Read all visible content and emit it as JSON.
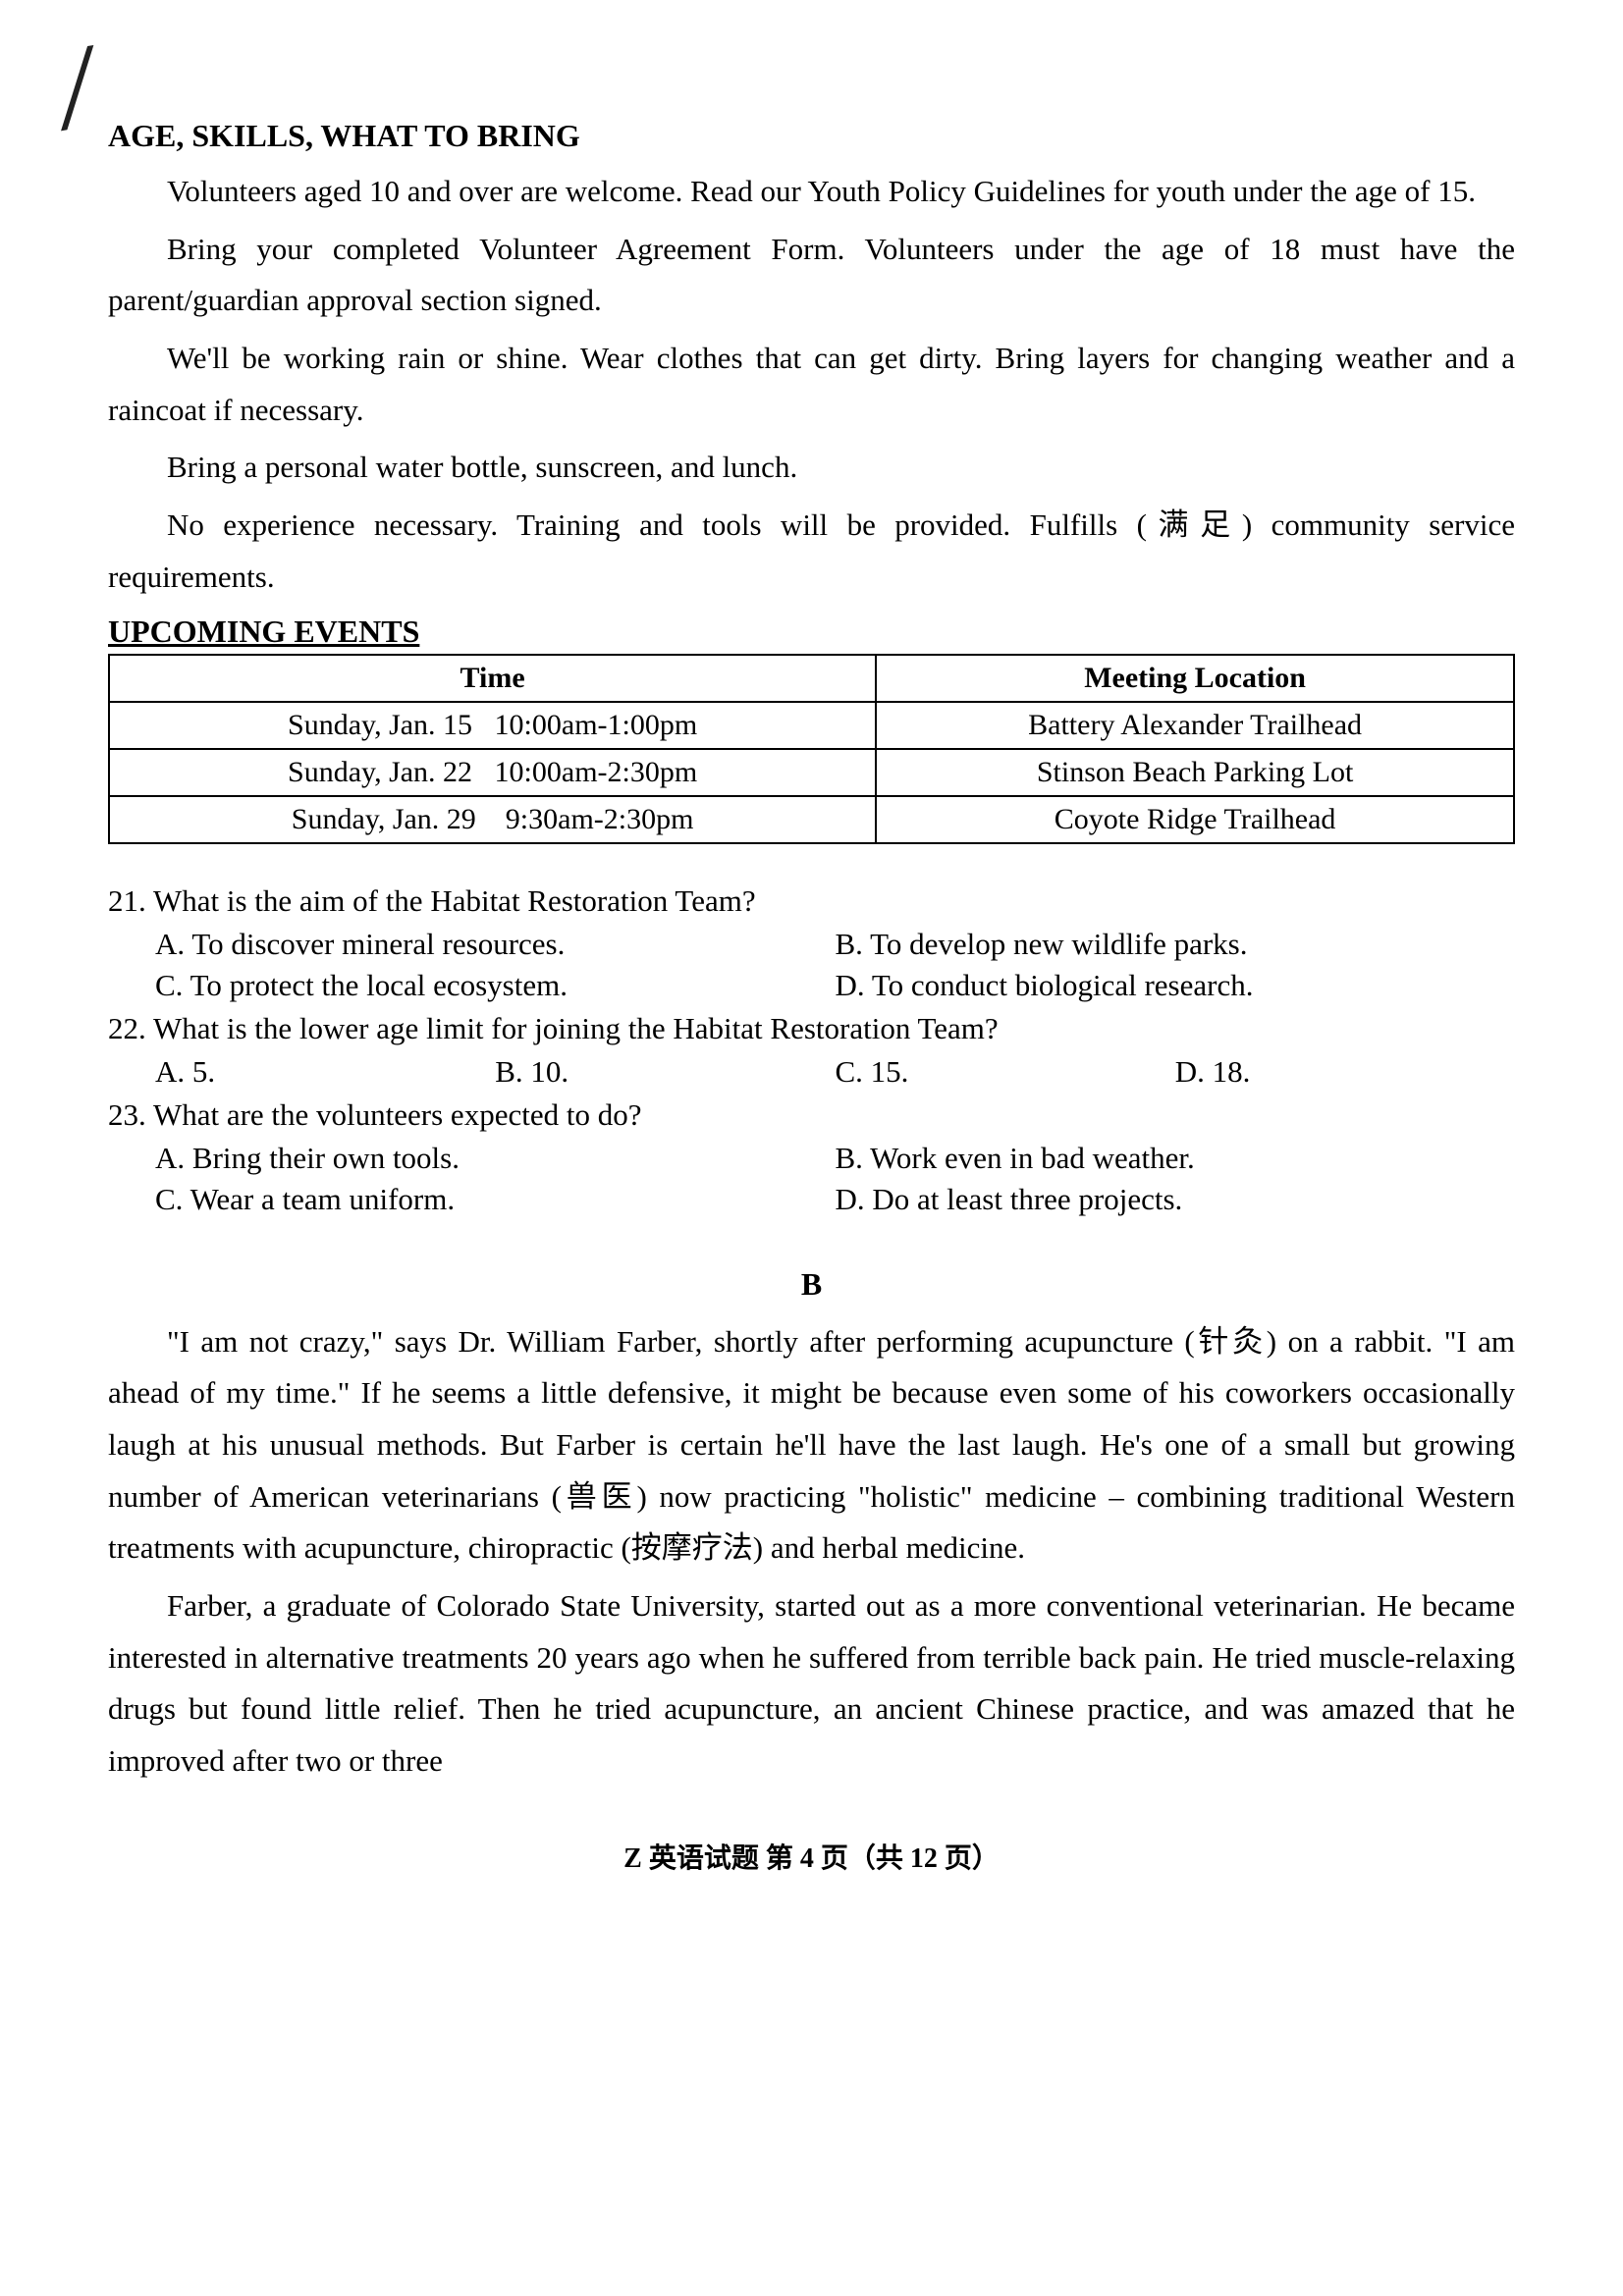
{
  "section1": {
    "heading": "AGE, SKILLS, WHAT TO BRING",
    "paragraphs": [
      "Volunteers aged 10 and over are welcome. Read our Youth Policy Guidelines for youth under the age of 15.",
      "Bring your completed Volunteer Agreement Form. Volunteers under the age of 18 must have the parent/guardian approval section signed.",
      "We'll be working rain or shine. Wear clothes that can get dirty. Bring layers for changing weather and a raincoat if necessary.",
      "Bring a personal water bottle, sunscreen, and lunch.",
      "No experience necessary. Training and tools will be provided. Fulfills (满足) community service requirements."
    ]
  },
  "events": {
    "heading": "UPCOMING EVENTS",
    "headers": [
      "Time",
      "Meeting Location"
    ],
    "rows": [
      [
        "Sunday, Jan. 15   10:00am-1:00pm",
        "Battery Alexander Trailhead"
      ],
      [
        "Sunday, Jan. 22   10:00am-2:30pm",
        "Stinson Beach Parking Lot"
      ],
      [
        "Sunday, Jan. 29    9:30am-2:30pm",
        "Coyote Ridge Trailhead"
      ]
    ]
  },
  "questions": [
    {
      "number": "21",
      "text": "What is the aim of the Habitat Restoration Team?",
      "layout": "two-col",
      "options": [
        "A. To discover mineral resources.",
        "B. To develop new wildlife parks.",
        "C. To protect the local ecosystem.",
        "D. To conduct biological research."
      ]
    },
    {
      "number": "22",
      "text": "What is the lower age limit for joining the Habitat Restoration Team?",
      "layout": "four-col",
      "options": [
        "A. 5.",
        "B. 10.",
        "C. 15.",
        "D. 18."
      ]
    },
    {
      "number": "23",
      "text": "What are the volunteers expected to do?",
      "layout": "two-col",
      "options": [
        "A. Bring their own tools.",
        "B. Work even in bad weather.",
        "C. Wear a team uniform.",
        "D. Do at least three projects."
      ]
    }
  ],
  "passageB": {
    "label": "B",
    "paragraphs": [
      "\"I am not crazy,\" says Dr. William Farber, shortly after performing acupuncture (针灸) on a rabbit. \"I am ahead of my time.\" If he seems a little defensive, it might be because even some of his coworkers occasionally laugh at his unusual methods. But Farber is certain he'll have the last laugh. He's one of a small but growing number of American veterinarians (兽医) now practicing \"holistic\" medicine – combining traditional Western treatments with acupuncture, chiropractic (按摩疗法) and herbal medicine.",
      "Farber, a graduate of Colorado State University, started out as a more conventional veterinarian. He became interested in alternative treatments 20 years ago when he suffered from terrible back pain. He tried muscle-relaxing drugs but found little relief. Then he tried acupuncture, an ancient Chinese practice, and was amazed that he improved after two or three"
    ]
  },
  "footer": "Z 英语试题 第 4 页（共 12 页）"
}
